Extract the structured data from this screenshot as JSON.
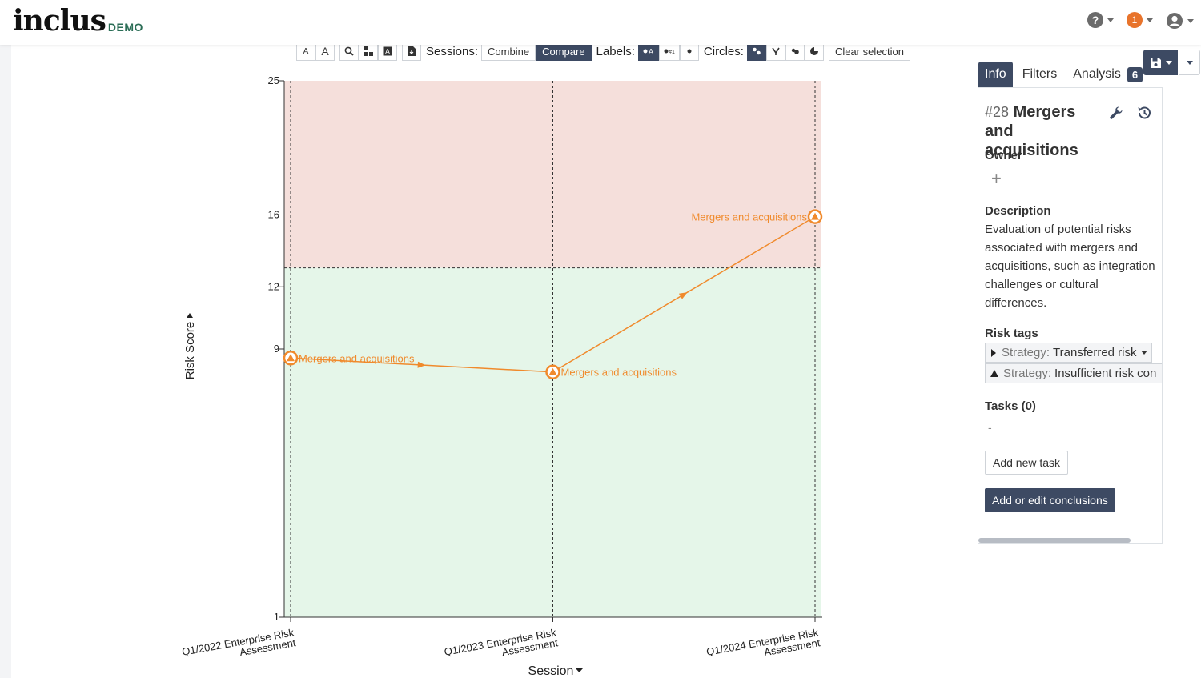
{
  "app": {
    "logo": "inclus",
    "logo_badge": "DEMO",
    "notification_count": "1"
  },
  "toolbar": {
    "font_small": "A",
    "font_large": "A",
    "sessions_label": "Sessions:",
    "combine": "Combine",
    "compare": "Compare",
    "labels_label": "Labels:",
    "circles_label": "Circles:",
    "clear_selection": "Clear selection"
  },
  "chart_data": {
    "type": "line",
    "xlabel": "Session",
    "ylabel": "Risk Score",
    "y_ticks": [
      1,
      9,
      12,
      16,
      25
    ],
    "categories": [
      "Q1/2022 Enterprise Risk Assessment",
      "Q1/2023 Enterprise Risk Assessment",
      "Q1/2024 Enterprise Risk Assessment"
    ],
    "category_lines": [
      [
        "Q1/2022 Enterprise Risk",
        "Assessment"
      ],
      [
        "Q1/2023 Enterprise Risk",
        "Assessment"
      ],
      [
        "Q1/2024 Enterprise Risk",
        "Assessment"
      ]
    ],
    "threshold": 13,
    "zones": [
      {
        "from": 13,
        "to": 25,
        "color": "#f5dfdb"
      },
      {
        "from": 1,
        "to": 13,
        "color": "#e5f6e9"
      }
    ],
    "series": [
      {
        "name": "Mergers and acquisitions",
        "color": "#f08a2c",
        "values": [
          8.6,
          8.0,
          15.9
        ],
        "point_labels": [
          "Mergers and acquisitions",
          "Mergers and acquisitions",
          "Mergers and acquisitions"
        ]
      }
    ]
  },
  "panel": {
    "tabs": [
      {
        "label": "Info"
      },
      {
        "label": "Filters"
      },
      {
        "label": "Analysis"
      }
    ],
    "analysis_count": "6",
    "risk_number": "#28",
    "risk_title": "Mergers and acquisitions",
    "owner_label": "Owner",
    "description_label": "Description",
    "description": "Evaluation of potential risks associated with mergers and acquisitions, such as integration challenges or cultural differences.",
    "risk_tags_label": "Risk tags",
    "tags": [
      {
        "key": "Strategy:",
        "value": "Transferred risk"
      },
      {
        "key": "Strategy:",
        "value": "Insufficient risk con"
      }
    ],
    "tasks_label": "Tasks (0)",
    "tasks_empty": "-",
    "add_task": "Add new task",
    "add_conclusions": "Add or edit conclusions"
  }
}
